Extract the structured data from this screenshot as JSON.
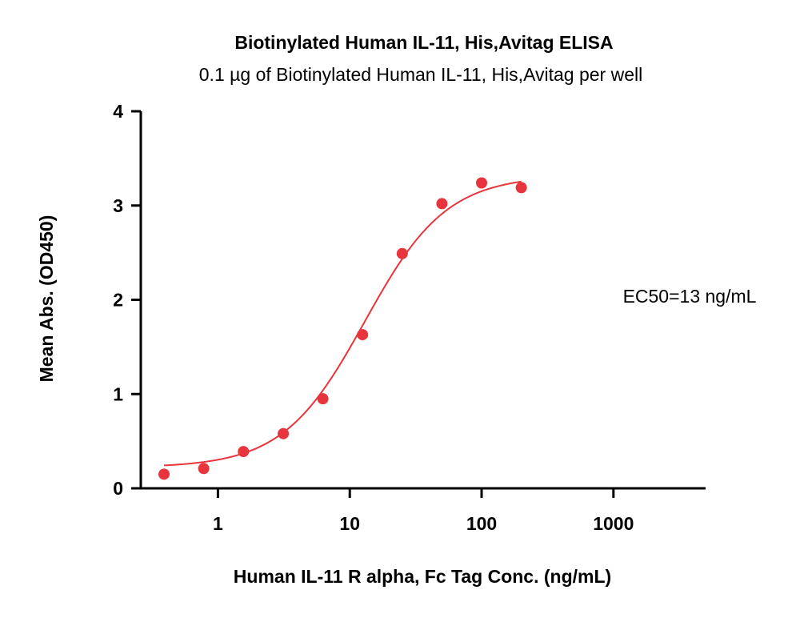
{
  "chart_data": {
    "type": "scatter",
    "title": "Biotinylated Human IL-11, His,Avitag ELISA",
    "subtitle": "0.1 µg of Biotinylated Human IL-11, His,Avitag per well",
    "xlabel": "Human IL-11 R alpha, Fc Tag Conc. (ng/mL)",
    "ylabel": "Mean Abs. (OD450)",
    "x_scale": "log",
    "xlim": [
      0.26,
      5000
    ],
    "ylim": [
      0,
      4
    ],
    "x_ticks": [
      1,
      10,
      100,
      1000
    ],
    "x_tick_labels": [
      "1",
      "10",
      "100",
      "1000"
    ],
    "y_ticks": [
      0,
      1,
      2,
      3,
      4
    ],
    "y_tick_labels": [
      "0",
      "1",
      "2",
      "3",
      "4"
    ],
    "grid": false,
    "point_color": "#e8343c",
    "curve_color": "#e8343c",
    "series": [
      {
        "x": [
          0.39,
          0.78,
          1.56,
          3.13,
          6.25,
          12.5,
          25,
          50,
          100,
          200
        ],
        "y": [
          0.15,
          0.21,
          0.39,
          0.58,
          0.95,
          1.63,
          2.49,
          3.02,
          3.24,
          3.19
        ]
      }
    ],
    "fit": {
      "model": "4PL",
      "bottom": 0.22,
      "top": 3.32,
      "ec50": 13,
      "hill": 1.4,
      "x_range": [
        0.39,
        200
      ]
    },
    "annotation": "EC50=13 ng/mL"
  }
}
